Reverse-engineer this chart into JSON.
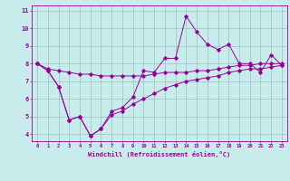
{
  "xlabel": "Windchill (Refroidissement éolien,°C)",
  "background_color": "#c8ecec",
  "line_color": "#990099",
  "grid_color": "#9fbfbf",
  "x": [
    0,
    1,
    2,
    3,
    4,
    5,
    6,
    7,
    8,
    9,
    10,
    11,
    12,
    13,
    14,
    15,
    16,
    17,
    18,
    19,
    20,
    21,
    22,
    23
  ],
  "y_main": [
    8.0,
    7.6,
    6.7,
    4.8,
    5.0,
    3.9,
    4.3,
    5.3,
    5.5,
    6.1,
    7.6,
    7.5,
    8.3,
    8.3,
    10.7,
    9.8,
    9.1,
    8.8,
    9.1,
    8.0,
    8.0,
    7.5,
    8.5,
    7.9
  ],
  "y_upper": [
    8.0,
    7.7,
    7.6,
    7.5,
    7.4,
    7.4,
    7.3,
    7.3,
    7.3,
    7.3,
    7.3,
    7.4,
    7.5,
    7.5,
    7.5,
    7.6,
    7.6,
    7.7,
    7.8,
    7.9,
    7.9,
    8.0,
    8.0,
    8.0
  ],
  "y_lower": [
    8.0,
    7.6,
    6.7,
    4.8,
    5.0,
    3.9,
    4.3,
    5.1,
    5.3,
    5.7,
    6.0,
    6.3,
    6.6,
    6.8,
    7.0,
    7.1,
    7.2,
    7.3,
    7.5,
    7.6,
    7.7,
    7.7,
    7.8,
    7.9
  ],
  "ylim": [
    3.6,
    11.3
  ],
  "yticks": [
    4,
    5,
    6,
    7,
    8,
    9,
    10,
    11
  ],
  "xlim": [
    -0.5,
    23.5
  ],
  "xticks": [
    0,
    1,
    2,
    3,
    4,
    5,
    6,
    7,
    8,
    9,
    10,
    11,
    12,
    13,
    14,
    15,
    16,
    17,
    18,
    19,
    20,
    21,
    22,
    23
  ]
}
